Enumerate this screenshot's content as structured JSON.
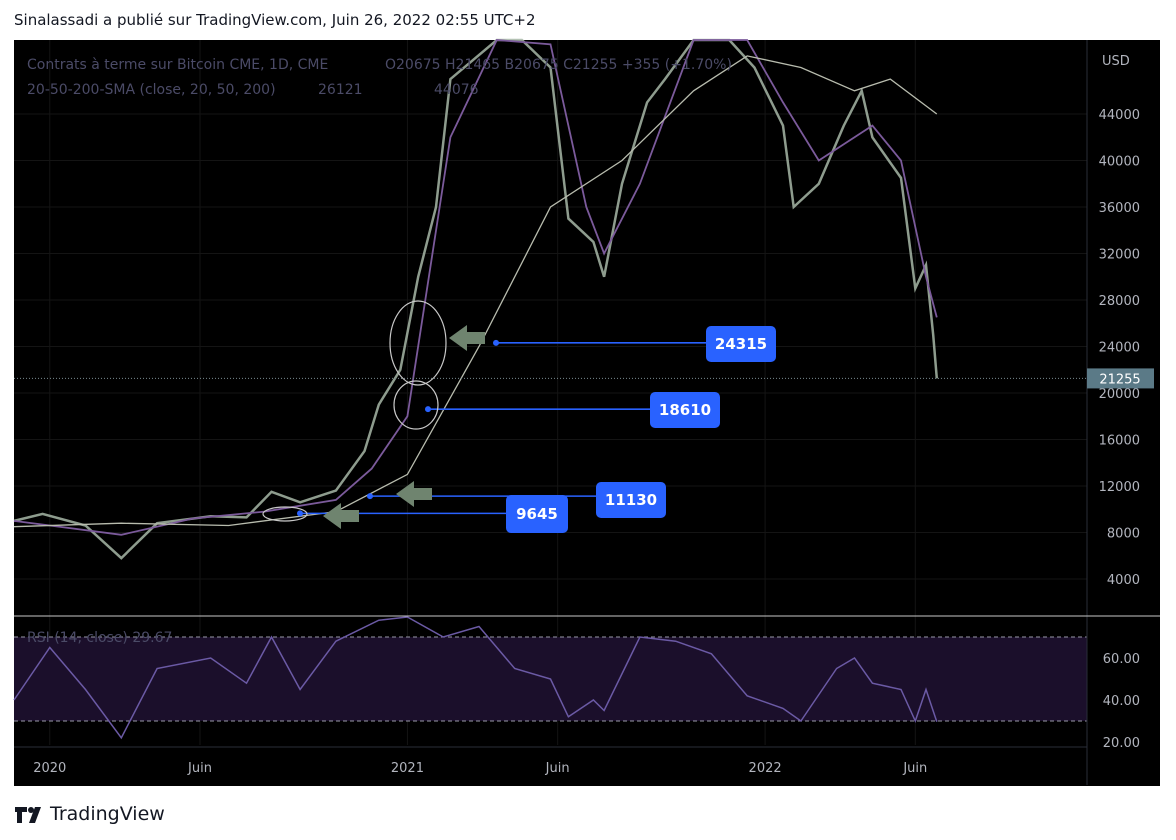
{
  "header": {
    "text": "Sinalassadi a publié sur TradingView.com, Juin 26, 2022 02:55 UTC+2"
  },
  "legend": {
    "symbol": "Contrats à terme sur Bitcoin CME, 1D, CME",
    "ohlc": "O20675 H21465 B20675 C21255 +355 (+1.70%)",
    "sma": "20-50-200-SMA (close, 20, 50, 200)",
    "sma_values": "26121",
    "sma_value2": "44076",
    "rsi": "RSI (14, close) 29.67"
  },
  "logo": {
    "text": "TradingView"
  },
  "colors": {
    "background": "#000000",
    "candle": "#a7b7a7",
    "sma_short": "#7b5a9b",
    "sma_long": "#b8bcae",
    "rsi_line": "#6b5aa5",
    "rsi_band": "#1b0f2b",
    "annotation": "#2962ff",
    "price_tag": "#5b7a87",
    "arrow": "#6f846f"
  },
  "chart_data": [
    {
      "type": "line",
      "title": "Contrats à terme sur Bitcoin CME, 1D, CME",
      "price_unit": "USD",
      "ylim": [
        0,
        47000
      ],
      "y_ticks": [
        4000,
        8000,
        12000,
        16000,
        20000,
        24000,
        28000,
        32000,
        36000,
        40000,
        44000
      ],
      "x_ticks": [
        "2020",
        "Juin",
        "2021",
        "Juin",
        "2022",
        "Juin"
      ],
      "last_price": 21255,
      "series": [
        {
          "name": "20-50-200-SMA (close, 20, 50, 200)",
          "points": [
            [
              2019.9,
              9000
            ],
            [
              2020.0,
              8600
            ],
            [
              2020.2,
              7800
            ],
            [
              2020.4,
              9200
            ],
            [
              2020.6,
              9800
            ],
            [
              2020.8,
              10800
            ],
            [
              2020.9,
              13500
            ],
            [
              2021.0,
              18000
            ],
            [
              2021.05,
              28000
            ],
            [
              2021.12,
              42000
            ],
            [
              2021.25,
              56000
            ],
            [
              2021.4,
              50000
            ],
            [
              2021.5,
              36000
            ],
            [
              2021.55,
              32000
            ],
            [
              2021.65,
              38000
            ],
            [
              2021.8,
              53000
            ],
            [
              2021.95,
              56000
            ],
            [
              2022.05,
              45000
            ],
            [
              2022.15,
              40000
            ],
            [
              2022.3,
              43000
            ],
            [
              2022.38,
              40000
            ],
            [
              2022.45,
              30000
            ],
            [
              2022.48,
              26500
            ]
          ]
        },
        {
          "name": "200",
          "points": [
            [
              2019.9,
              8500
            ],
            [
              2020.2,
              8800
            ],
            [
              2020.5,
              8600
            ],
            [
              2020.8,
              9800
            ],
            [
              2021.0,
              13000
            ],
            [
              2021.2,
              24000
            ],
            [
              2021.4,
              36000
            ],
            [
              2021.6,
              40000
            ],
            [
              2021.8,
              46000
            ],
            [
              2021.95,
              49000
            ],
            [
              2022.1,
              48000
            ],
            [
              2022.25,
              46000
            ],
            [
              2022.35,
              47000
            ],
            [
              2022.48,
              44000
            ]
          ]
        }
      ],
      "price_ohlc": {
        "points": [
          [
            2019.9,
            9000
          ],
          [
            2019.98,
            9600
          ],
          [
            2020.1,
            8600
          ],
          [
            2020.2,
            5800
          ],
          [
            2020.3,
            8800
          ],
          [
            2020.45,
            9400
          ],
          [
            2020.55,
            9300
          ],
          [
            2020.62,
            11500
          ],
          [
            2020.7,
            10600
          ],
          [
            2020.8,
            11600
          ],
          [
            2020.88,
            15000
          ],
          [
            2020.92,
            19000
          ],
          [
            2020.98,
            22000
          ],
          [
            2021.03,
            30000
          ],
          [
            2021.08,
            36000
          ],
          [
            2021.12,
            47000
          ],
          [
            2021.25,
            57000
          ],
          [
            2021.32,
            52000
          ],
          [
            2021.4,
            48000
          ],
          [
            2021.45,
            35000
          ],
          [
            2021.52,
            33000
          ],
          [
            2021.55,
            30000
          ],
          [
            2021.6,
            38000
          ],
          [
            2021.67,
            45000
          ],
          [
            2021.72,
            47000
          ],
          [
            2021.8,
            58000
          ],
          [
            2021.9,
            60000
          ],
          [
            2021.97,
            48000
          ],
          [
            2022.05,
            43000
          ],
          [
            2022.08,
            36000
          ],
          [
            2022.15,
            38000
          ],
          [
            2022.22,
            43000
          ],
          [
            2022.27,
            46000
          ],
          [
            2022.3,
            42000
          ],
          [
            2022.38,
            38500
          ],
          [
            2022.42,
            29000
          ],
          [
            2022.45,
            31000
          ],
          [
            2022.47,
            25000
          ],
          [
            2022.48,
            21255
          ]
        ]
      },
      "annotations": [
        {
          "label": "24315",
          "value": 24315
        },
        {
          "label": "18610",
          "value": 18610
        },
        {
          "label": "11130",
          "value": 11130
        },
        {
          "label": "9645",
          "value": 9645
        }
      ]
    },
    {
      "type": "line",
      "title": "RSI (14, close)",
      "ylim": [
        20,
        76
      ],
      "y_ticks": [
        20,
        40,
        60
      ],
      "y_tick_labels": [
        "20.00",
        "40.00",
        "60.00"
      ],
      "bands": [
        30,
        70
      ],
      "series": [
        {
          "name": "RSI",
          "points": [
            [
              2019.9,
              40
            ],
            [
              2020.0,
              65
            ],
            [
              2020.1,
              45
            ],
            [
              2020.2,
              22
            ],
            [
              2020.3,
              55
            ],
            [
              2020.45,
              60
            ],
            [
              2020.55,
              48
            ],
            [
              2020.62,
              70
            ],
            [
              2020.7,
              45
            ],
            [
              2020.8,
              68
            ],
            [
              2020.92,
              78
            ],
            [
              2021.0,
              80
            ],
            [
              2021.1,
              70
            ],
            [
              2021.2,
              75
            ],
            [
              2021.3,
              55
            ],
            [
              2021.4,
              50
            ],
            [
              2021.45,
              32
            ],
            [
              2021.52,
              40
            ],
            [
              2021.55,
              35
            ],
            [
              2021.65,
              70
            ],
            [
              2021.75,
              68
            ],
            [
              2021.85,
              62
            ],
            [
              2021.95,
              42
            ],
            [
              2022.05,
              36
            ],
            [
              2022.1,
              30
            ],
            [
              2022.2,
              55
            ],
            [
              2022.25,
              60
            ],
            [
              2022.3,
              48
            ],
            [
              2022.38,
              45
            ],
            [
              2022.42,
              30
            ],
            [
              2022.45,
              45
            ],
            [
              2022.48,
              29.67
            ]
          ]
        }
      ],
      "last_value": 29.67
    }
  ]
}
